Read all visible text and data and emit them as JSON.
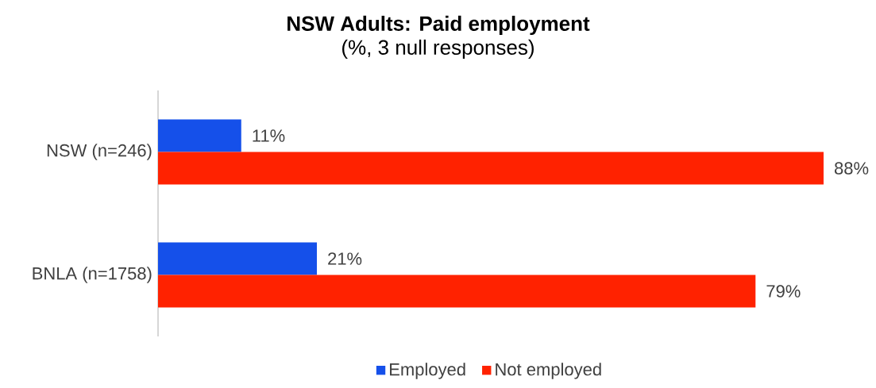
{
  "chart_data": {
    "type": "bar",
    "orientation": "horizontal",
    "title": "NSW Adults: Paid employment",
    "subtitle": "(%, 3 null responses)",
    "categories": [
      "NSW (n=246)",
      "BNLA (n=1758)"
    ],
    "series": [
      {
        "name": "Employed",
        "color": "#1550ea",
        "values": [
          11,
          21
        ],
        "value_labels": [
          "11%",
          "21%"
        ]
      },
      {
        "name": "Not employed",
        "color": "#ff2200",
        "values": [
          88,
          79
        ],
        "value_labels": [
          "88%",
          "79%"
        ]
      }
    ],
    "legend": "bottom",
    "tick_labels": "y"
  }
}
